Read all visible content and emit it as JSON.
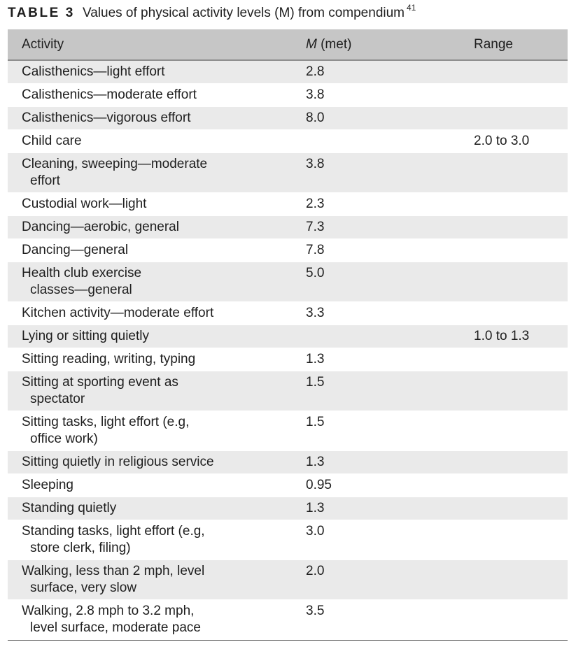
{
  "caption": {
    "label": "TABLE 3",
    "title": "Values of physical activity levels (M) from compendium",
    "ref": "41"
  },
  "table": {
    "headers": {
      "activity": "Activity",
      "met_symbol": "M",
      "met_unit": "(met)",
      "range": "Range"
    },
    "rows": [
      {
        "line1": "Calisthenics—light effort",
        "line2": "",
        "met": "2.8",
        "range": ""
      },
      {
        "line1": "Calisthenics—moderate effort",
        "line2": "",
        "met": "3.8",
        "range": ""
      },
      {
        "line1": "Calisthenics—vigorous effort",
        "line2": "",
        "met": "8.0",
        "range": ""
      },
      {
        "line1": "Child care",
        "line2": "",
        "met": "",
        "range": "2.0 to 3.0"
      },
      {
        "line1": "Cleaning, sweeping—moderate",
        "line2": "effort",
        "met": "3.8",
        "range": ""
      },
      {
        "line1": "Custodial work—light",
        "line2": "",
        "met": "2.3",
        "range": ""
      },
      {
        "line1": "Dancing—aerobic, general",
        "line2": "",
        "met": "7.3",
        "range": ""
      },
      {
        "line1": "Dancing—general",
        "line2": "",
        "met": "7.8",
        "range": ""
      },
      {
        "line1": "Health club exercise",
        "line2": "classes—general",
        "met": "5.0",
        "range": ""
      },
      {
        "line1": "Kitchen activity—moderate effort",
        "line2": "",
        "met": "3.3",
        "range": ""
      },
      {
        "line1": "Lying or sitting quietly",
        "line2": "",
        "met": "",
        "range": "1.0 to 1.3"
      },
      {
        "line1": "Sitting reading, writing, typing",
        "line2": "",
        "met": "1.3",
        "range": ""
      },
      {
        "line1": "Sitting at sporting event as",
        "line2": "spectator",
        "met": "1.5",
        "range": ""
      },
      {
        "line1": "Sitting tasks, light effort (e.g,",
        "line2": "office work)",
        "met": "1.5",
        "range": ""
      },
      {
        "line1": "Sitting quietly in religious service",
        "line2": "",
        "met": "1.3",
        "range": ""
      },
      {
        "line1": "Sleeping",
        "line2": "",
        "met": "0.95",
        "range": ""
      },
      {
        "line1": "Standing quietly",
        "line2": "",
        "met": "1.3",
        "range": ""
      },
      {
        "line1": "Standing tasks, light effort (e.g,",
        "line2": "store clerk, filing)",
        "met": "3.0",
        "range": ""
      },
      {
        "line1": "Walking, less than 2 mph, level",
        "line2": "surface, very slow",
        "met": "2.0",
        "range": ""
      },
      {
        "line1": "Walking, 2.8 mph to 3.2 mph,",
        "line2": "level surface, moderate pace",
        "met": "3.5",
        "range": ""
      }
    ]
  }
}
